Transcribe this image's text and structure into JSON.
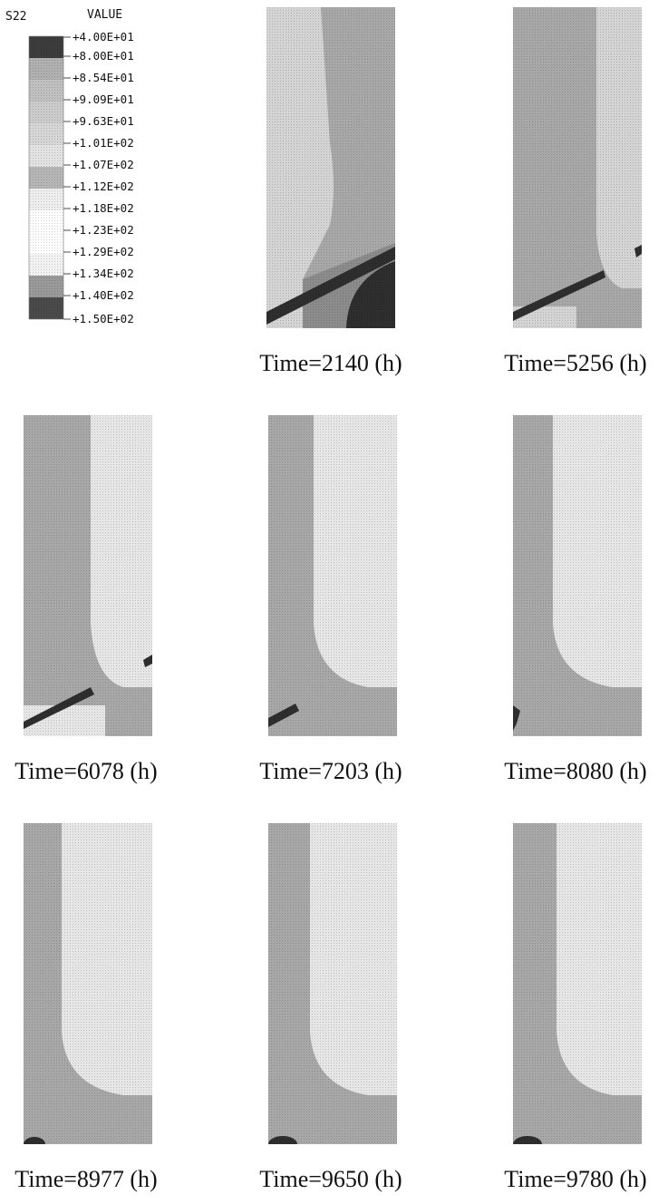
{
  "legend": {
    "variable": "S22",
    "value_header": "VALUE",
    "values": [
      "+4.00E+01",
      "+8.00E+01",
      "+8.54E+01",
      "+9.09E+01",
      "+9.63E+01",
      "+1.01E+02",
      "+1.07E+02",
      "+1.12E+02",
      "+1.18E+02",
      "+1.23E+02",
      "+1.29E+02",
      "+1.34E+02",
      "+1.40E+02",
      "+1.50E+02"
    ],
    "band_colors": [
      "#3c3c3c",
      "#b0b0b0",
      "#c0c0c0",
      "#cccccc",
      "#d6d6d6",
      "#e2e2e2",
      "#b6b6b6",
      "#eeeeee",
      "#ffffff",
      "#ffffff",
      "#f2f2f2",
      "#9a9a9a",
      "#4a4a4a"
    ]
  },
  "colors": {
    "dark_band": "#2e2e2e",
    "medium": "#a8a8a8",
    "medium_dark": "#8c8c8c",
    "light": "#d4d4d4",
    "lighter": "#e6e6e6"
  },
  "panels": [
    {
      "label": "Time=2140 (h)"
    },
    {
      "label": "Time=5256 (h)"
    },
    {
      "label": "Time=6078 (h)"
    },
    {
      "label": "Time=7203 (h)"
    },
    {
      "label": "Time=8080 (h)"
    },
    {
      "label": "Time=8977 (h)"
    },
    {
      "label": "Time=9650 (h)"
    },
    {
      "label": "Time=9780 (h)"
    }
  ]
}
